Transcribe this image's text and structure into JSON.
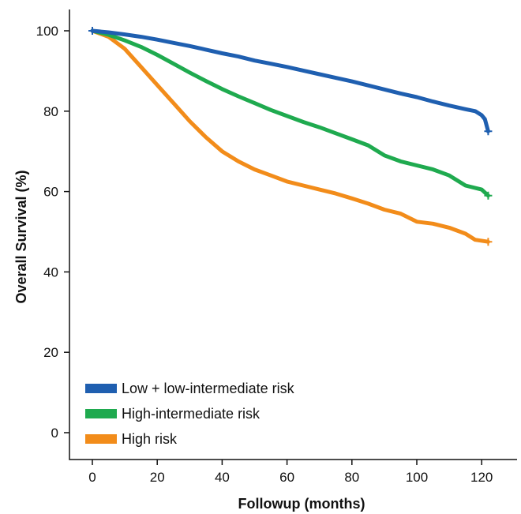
{
  "chart_data": {
    "type": "line",
    "title": "",
    "xlabel": "Followup (months)",
    "ylabel": "Overall Survival (%)",
    "xlim": [
      0,
      125
    ],
    "ylim": [
      0,
      105
    ],
    "xticks": [
      0,
      20,
      40,
      60,
      80,
      100,
      120
    ],
    "yticks": [
      0,
      20,
      40,
      60,
      80,
      100
    ],
    "grid": false,
    "legend_position": "bottom-left",
    "series": [
      {
        "name": "Low + low-intermediate risk",
        "color": "#1f5fb0",
        "x": [
          0,
          5,
          10,
          15,
          20,
          25,
          30,
          35,
          40,
          45,
          50,
          55,
          60,
          65,
          70,
          75,
          80,
          85,
          90,
          95,
          100,
          105,
          110,
          115,
          118,
          120,
          121,
          122
        ],
        "y": [
          100,
          99.6,
          99.1,
          98.5,
          97.8,
          97.0,
          96.2,
          95.3,
          94.4,
          93.6,
          92.6,
          91.8,
          91.0,
          90.1,
          89.2,
          88.3,
          87.4,
          86.4,
          85.4,
          84.4,
          83.5,
          82.4,
          81.4,
          80.5,
          80.0,
          79.0,
          78.0,
          75.0
        ]
      },
      {
        "name": "High-intermediate risk",
        "color": "#1faa4f",
        "x": [
          0,
          5,
          10,
          15,
          20,
          25,
          30,
          35,
          40,
          45,
          50,
          55,
          60,
          65,
          70,
          75,
          80,
          85,
          90,
          95,
          100,
          105,
          110,
          115,
          120,
          122
        ],
        "y": [
          100,
          99.0,
          97.6,
          96.0,
          94.0,
          91.8,
          89.6,
          87.5,
          85.5,
          83.7,
          82.0,
          80.3,
          78.8,
          77.3,
          76.0,
          74.5,
          73.0,
          71.5,
          69.0,
          67.5,
          66.5,
          65.5,
          64.0,
          61.5,
          60.5,
          59.0
        ]
      },
      {
        "name": "High risk",
        "color": "#f28c1a",
        "x": [
          0,
          5,
          10,
          15,
          20,
          25,
          30,
          35,
          40,
          45,
          50,
          55,
          60,
          65,
          70,
          75,
          80,
          85,
          90,
          95,
          100,
          105,
          110,
          115,
          118,
          122
        ],
        "y": [
          100,
          98.5,
          95.5,
          91.0,
          86.5,
          82.0,
          77.5,
          73.5,
          70.0,
          67.5,
          65.5,
          64.0,
          62.5,
          61.5,
          60.5,
          59.5,
          58.3,
          57.0,
          55.5,
          54.5,
          52.5,
          52.0,
          51.0,
          49.5,
          48.0,
          47.5
        ]
      }
    ]
  }
}
